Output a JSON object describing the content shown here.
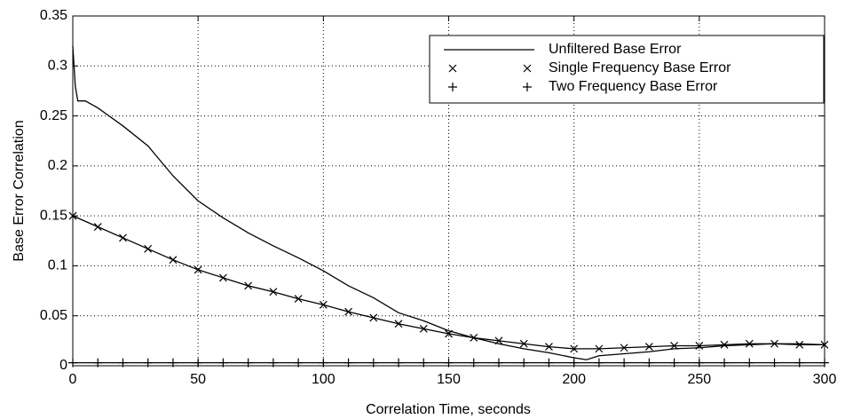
{
  "chart_data": {
    "type": "line",
    "xlabel": "Correlation Time, seconds",
    "ylabel": "Base Error Correlation",
    "xlim": [
      0,
      300
    ],
    "xticks": [
      0,
      50,
      100,
      150,
      200,
      250,
      300
    ],
    "ylim": [
      0,
      0.35
    ],
    "yticks": [
      0,
      0.05,
      0.1,
      0.15,
      0.2,
      0.25,
      0.3,
      0.35
    ],
    "grid": true,
    "legend": "upper right",
    "series": [
      {
        "name": "Unfiltered Base Error",
        "color": "#000000",
        "marker": "none",
        "x": [
          0,
          1,
          2,
          5,
          10,
          20,
          30,
          40,
          50,
          60,
          70,
          80,
          90,
          100,
          110,
          120,
          130,
          140,
          150,
          160,
          170,
          180,
          190,
          200,
          205,
          210,
          220,
          230,
          240,
          250,
          260,
          270,
          280,
          290,
          300
        ],
        "values": [
          0.32,
          0.28,
          0.265,
          0.265,
          0.258,
          0.24,
          0.22,
          0.19,
          0.165,
          0.148,
          0.133,
          0.12,
          0.108,
          0.095,
          0.08,
          0.068,
          0.053,
          0.045,
          0.035,
          0.028,
          0.022,
          0.017,
          0.013,
          0.008,
          0.006,
          0.01,
          0.012,
          0.014,
          0.017,
          0.018,
          0.02,
          0.021,
          0.022,
          0.022,
          0.021
        ]
      },
      {
        "name": "Single Frequency Base Error",
        "color": "#000000",
        "marker": "x",
        "x": [
          0,
          10,
          20,
          30,
          40,
          50,
          60,
          70,
          80,
          90,
          100,
          110,
          120,
          130,
          140,
          150,
          160,
          170,
          180,
          190,
          200,
          210,
          220,
          230,
          240,
          250,
          260,
          270,
          280,
          290,
          300
        ],
        "values": [
          0.15,
          0.139,
          0.128,
          0.117,
          0.106,
          0.096,
          0.088,
          0.08,
          0.074,
          0.067,
          0.061,
          0.054,
          0.048,
          0.042,
          0.037,
          0.032,
          0.028,
          0.025,
          0.022,
          0.019,
          0.017,
          0.017,
          0.018,
          0.019,
          0.02,
          0.02,
          0.021,
          0.022,
          0.022,
          0.021,
          0.021
        ]
      },
      {
        "name": "Two Frequency Base Error",
        "color": "#000000",
        "marker": "+",
        "x": [
          0,
          10,
          20,
          30,
          40,
          50,
          60,
          70,
          80,
          90,
          100,
          110,
          120,
          130,
          140,
          150,
          160,
          170,
          180,
          190,
          200,
          210,
          220,
          230,
          240,
          250,
          260,
          270,
          280,
          290,
          300
        ],
        "values": [
          0.003,
          0.003,
          0.003,
          0.003,
          0.003,
          0.003,
          0.003,
          0.003,
          0.003,
          0.003,
          0.003,
          0.003,
          0.003,
          0.003,
          0.003,
          0.003,
          0.003,
          0.003,
          0.003,
          0.003,
          0.003,
          0.003,
          0.003,
          0.003,
          0.003,
          0.003,
          0.003,
          0.003,
          0.003,
          0.003,
          0.003
        ]
      }
    ]
  }
}
